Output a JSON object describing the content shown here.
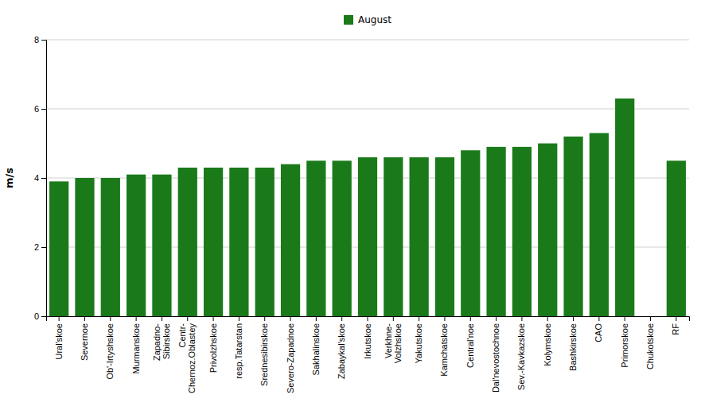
{
  "chart_data": {
    "type": "bar",
    "categories": [
      "Ural'skoe",
      "Severnoe",
      "Ob'-Irtyshskoe",
      "Murmanskoe",
      "Zapadno-\nSibirskoe",
      "Centr-\nChernoz.Oblastey",
      "Privolzhskoe",
      "resp.Tatarstan",
      "Srednesibirskoe",
      "Severo-Zapadnoe",
      "Sakhalinskoe",
      "Zabaykal'skoe",
      "Irkutskoe",
      "Verkhne-\nVolzhskoe",
      "Yakutskoe",
      "Kamchatskoe",
      "Central'noe",
      "Dal'nevostochnoe",
      "Sev.-Kavkazskoe",
      "Kolymskoe",
      "Bashkirskoe",
      "CAO",
      "Primorskoe",
      "Chukotskoe",
      "RF"
    ],
    "series": [
      {
        "name": "August",
        "color": "#1a7a1a",
        "values": [
          3.9,
          4.0,
          4.0,
          4.1,
          4.1,
          4.3,
          4.3,
          4.3,
          4.3,
          4.4,
          4.5,
          4.5,
          4.6,
          4.6,
          4.6,
          4.6,
          4.8,
          4.9,
          4.9,
          5.0,
          5.2,
          5.3,
          6.3,
          0.0,
          4.5
        ]
      }
    ],
    "ylabel": "m/s",
    "ylim": [
      0,
      8
    ],
    "yticks": [
      0,
      2,
      4,
      6,
      8
    ],
    "grid": true,
    "legend": "top"
  }
}
